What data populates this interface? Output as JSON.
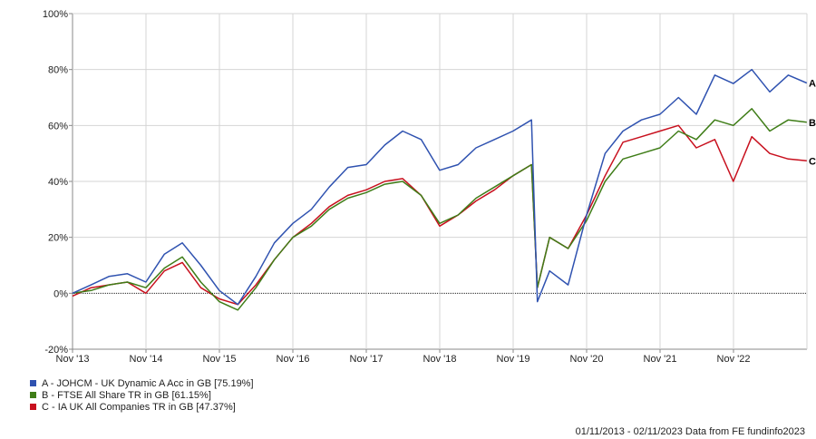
{
  "chart_data": {
    "type": "line",
    "ylim": [
      -20,
      100
    ],
    "y_ticks": [
      "-20%",
      "0%",
      "20%",
      "40%",
      "60%",
      "80%",
      "100%"
    ],
    "x_ticks": [
      "Nov '13",
      "Nov '14",
      "Nov '15",
      "Nov '16",
      "Nov '17",
      "Nov '18",
      "Nov '19",
      "Nov '20",
      "Nov '21",
      "Nov '22"
    ],
    "x": [
      "2013-11",
      "2014-02",
      "2014-05",
      "2014-08",
      "2014-11",
      "2015-02",
      "2015-05",
      "2015-08",
      "2015-11",
      "2016-02",
      "2016-05",
      "2016-08",
      "2016-11",
      "2017-02",
      "2017-05",
      "2017-08",
      "2017-11",
      "2018-02",
      "2018-05",
      "2018-08",
      "2018-11",
      "2019-02",
      "2019-05",
      "2019-08",
      "2019-11",
      "2020-02",
      "2020-03",
      "2020-05",
      "2020-08",
      "2020-11",
      "2021-02",
      "2021-05",
      "2021-08",
      "2021-11",
      "2022-02",
      "2022-05",
      "2022-08",
      "2022-11",
      "2023-02",
      "2023-05",
      "2023-08",
      "2023-11"
    ],
    "series": [
      {
        "name": "A - JOHCM - UK Dynamic A Acc in GB [75.19%]",
        "label": "A",
        "color": "#2f52b0",
        "values": [
          0,
          3,
          6,
          7,
          4,
          14,
          18,
          10,
          1,
          -4,
          6,
          18,
          25,
          30,
          38,
          45,
          46,
          53,
          58,
          55,
          44,
          46,
          52,
          55,
          58,
          62,
          -3,
          8,
          3,
          28,
          50,
          58,
          62,
          64,
          70,
          64,
          78,
          75,
          80,
          72,
          78,
          75.19
        ]
      },
      {
        "name": "B - FTSE All Share TR in GB [61.15%]",
        "label": "B",
        "color": "#3f7d18",
        "values": [
          0,
          1,
          3,
          4,
          2,
          9,
          13,
          4,
          -3,
          -6,
          2,
          12,
          20,
          24,
          30,
          34,
          36,
          39,
          40,
          35,
          25,
          28,
          34,
          38,
          42,
          46,
          2,
          20,
          16,
          26,
          40,
          48,
          50,
          52,
          58,
          55,
          62,
          60,
          66,
          58,
          62,
          61.15
        ]
      },
      {
        "name": "C - IA UK All Companies TR in GB [47.37%]",
        "label": "C",
        "color": "#c8101e",
        "values": [
          -1,
          2,
          3,
          4,
          0,
          8,
          11,
          2,
          -2,
          -4,
          3,
          12,
          20,
          25,
          31,
          35,
          37,
          40,
          41,
          35,
          24,
          28,
          33,
          37,
          42,
          46,
          2,
          20,
          16,
          28,
          42,
          54,
          56,
          58,
          60,
          52,
          55,
          40,
          56,
          50,
          48,
          47.37
        ]
      }
    ],
    "footer": "01/11/2013 - 02/11/2023 Data from FE fundinfo2023"
  },
  "colors": {
    "grid": "#d4d4d4",
    "axis": "#888888",
    "zero": "#000000"
  }
}
